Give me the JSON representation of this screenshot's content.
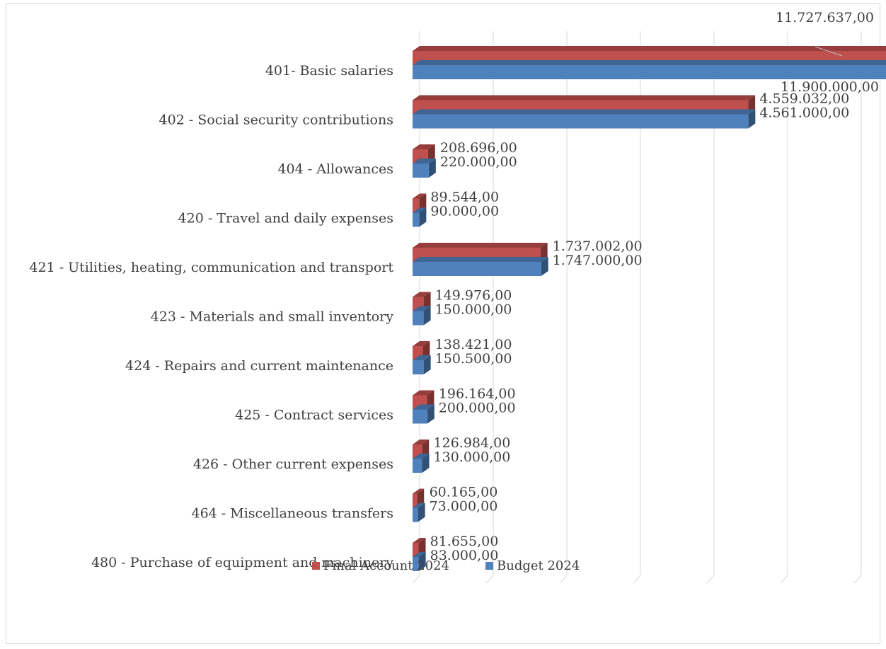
{
  "chart_data": {
    "type": "bar",
    "orientation": "horizontal",
    "style": "3d-clustered",
    "title": "",
    "xlabel": "",
    "ylabel": "",
    "xlim": [
      0,
      12000000
    ],
    "grid": true,
    "legend_position": "bottom",
    "categories": [
      "401- Basic salaries",
      "402 - Social security contributions",
      "404 - Allowances",
      "420 - Travel and daily expenses",
      "421 - Utilities, heating, communication and transport",
      "423 - Materials and small inventory",
      "424 - Repairs and current maintenance",
      "425 - Contract services",
      "426 - Other current expenses",
      "464 - Miscellaneous transfers",
      "480 - Purchase of equipment and machinery"
    ],
    "series": [
      {
        "name": "Final Account 2024",
        "color": "#c0504d",
        "values": [
          11727637,
          4559032,
          208696,
          89544,
          1737002,
          149976,
          138421,
          196164,
          126984,
          60165,
          81655
        ],
        "labels": [
          "11.727.637,00",
          "4.559.032,00",
          "208.696,00",
          "89.544,00",
          "1.737.002,00",
          "149.976,00",
          "138.421,00",
          "196.164,00",
          "126.984,00",
          "60.165,00",
          "81.655,00"
        ]
      },
      {
        "name": "Budget 2024",
        "color": "#4f81bd",
        "values": [
          11900000,
          4561000,
          220000,
          90000,
          1747000,
          150000,
          150500,
          200000,
          130000,
          73000,
          83000
        ],
        "labels": [
          "11.900.000,00",
          "4.561.000,00",
          "220.000,00",
          "90.000,00",
          "1.747.000,00",
          "150.000,00",
          "150.500,00",
          "200.000,00",
          "130.000,00",
          "73.000,00",
          "83.000,00"
        ]
      }
    ]
  }
}
